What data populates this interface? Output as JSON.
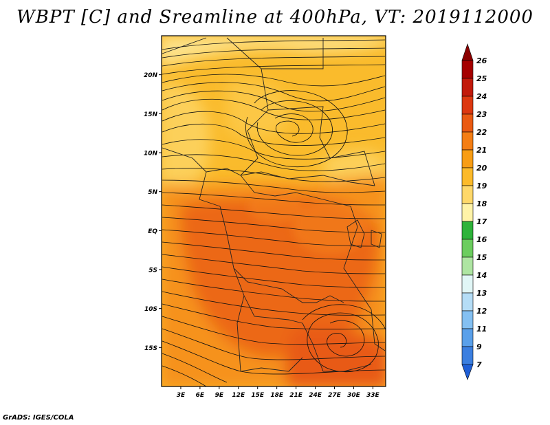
{
  "title": "WBPT [C] and Sreamline at 400hPa, VT: 2019112000",
  "credit": "GrADS: IGES/COLA",
  "variable": "Wet-bulb potential temperature with streamlines",
  "map": {
    "lon_range": [
      0,
      35
    ],
    "lat_range": [
      -20,
      25
    ],
    "lat_ticks": [
      {
        "value": 20,
        "label": "20N"
      },
      {
        "value": 15,
        "label": "15N"
      },
      {
        "value": 10,
        "label": "10N"
      },
      {
        "value": 5,
        "label": "5N"
      },
      {
        "value": 0,
        "label": "EQ"
      },
      {
        "value": -5,
        "label": "5S"
      },
      {
        "value": -10,
        "label": "10S"
      },
      {
        "value": -15,
        "label": "15S"
      }
    ],
    "lon_ticks": [
      {
        "value": 3,
        "label": "3E"
      },
      {
        "value": 6,
        "label": "6E"
      },
      {
        "value": 9,
        "label": "9E"
      },
      {
        "value": 12,
        "label": "12E"
      },
      {
        "value": 15,
        "label": "15E"
      },
      {
        "value": 18,
        "label": "18E"
      },
      {
        "value": 21,
        "label": "21E"
      },
      {
        "value": 24,
        "label": "24E"
      },
      {
        "value": 27,
        "label": "27E"
      },
      {
        "value": 30,
        "label": "30E"
      },
      {
        "value": 33,
        "label": "33E"
      }
    ]
  },
  "colorbar": {
    "labels": [
      "26",
      "25",
      "24",
      "23",
      "22",
      "21",
      "20",
      "19",
      "18",
      "17",
      "16",
      "15",
      "14",
      "13",
      "12",
      "11",
      "9",
      "7"
    ],
    "colors": [
      "#a50000",
      "#c21a0b",
      "#dd3810",
      "#ea5a12",
      "#f47e14",
      "#f89d15",
      "#fcba2a",
      "#fed86a",
      "#fff3a8",
      "#2eb33a",
      "#6ccd5f",
      "#aee5a2",
      "#e1f6f6",
      "#b5ddf6",
      "#84c0f2",
      "#5aa0ea",
      "#3b7fe0",
      "#2160d6"
    ],
    "top_arrow_color": "#8b0000",
    "bottom_arrow_color": "#1f5fd6"
  }
}
